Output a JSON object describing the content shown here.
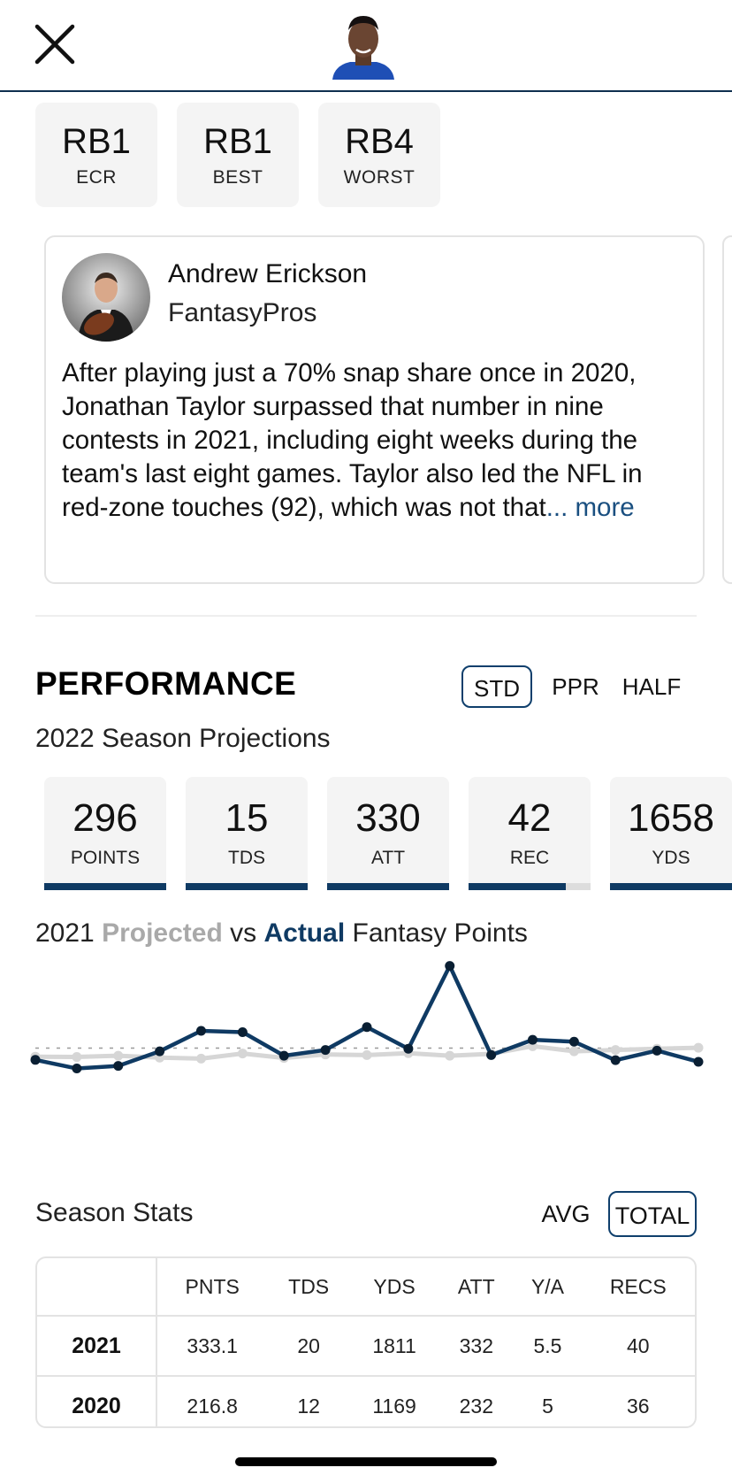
{
  "header": {
    "close_icon": "close-icon",
    "player_avatar": "player-headshot"
  },
  "rankings": [
    {
      "value": "RB1",
      "label": "ECR"
    },
    {
      "value": "RB1",
      "label": "BEST"
    },
    {
      "value": "RB4",
      "label": "WORST"
    }
  ],
  "expert": {
    "name": "Andrew Erickson",
    "org": "FantasyPros",
    "blurb": "After playing just a 70% snap share once in 2020, Jonathan Taylor surpassed that number in nine contests in 2021, including eight weeks during the team's last eight games. Taylor also led the NFL in red-zone touches (92), which was not that",
    "ellipsis": "...",
    "more": " more"
  },
  "performance": {
    "title": "PERFORMANCE",
    "scoring": [
      "STD",
      "PPR",
      "HALF"
    ],
    "selected_scoring": "STD",
    "subtitle": "2022 Season Projections",
    "projections": [
      {
        "value": "296",
        "label": "POINTS",
        "fill": 1.0
      },
      {
        "value": "15",
        "label": "TDS",
        "fill": 1.0
      },
      {
        "value": "330",
        "label": "ATT",
        "fill": 1.0
      },
      {
        "value": "42",
        "label": "REC",
        "fill": 0.8
      },
      {
        "value": "1658",
        "label": "YDS",
        "fill": 1.0
      }
    ],
    "chart_title": {
      "year": "2021 ",
      "projected": "Projected",
      "vs": " vs ",
      "actual": "Actual",
      "rest": " Fantasy Points"
    }
  },
  "chart_data": {
    "type": "line",
    "title": "2021 Projected vs Actual Fantasy Points",
    "x": [
      1,
      2,
      3,
      4,
      5,
      6,
      7,
      8,
      9,
      10,
      11,
      12,
      13,
      14,
      15,
      16,
      17
    ],
    "series": [
      {
        "name": "Projected",
        "color": "#d6d6d6",
        "values": [
          15.5,
          15.4,
          15.8,
          15.2,
          14.9,
          16.5,
          15.1,
          16.2,
          16.0,
          16.6,
          15.8,
          16.4,
          18.8,
          17.2,
          17.6,
          18.0,
          18.3
        ]
      },
      {
        "name": "Actual",
        "color": "#0f3a63",
        "values": [
          14.5,
          11.8,
          12.6,
          17.2,
          23.6,
          23.2,
          15.8,
          17.6,
          24.8,
          18.0,
          44.0,
          16.0,
          20.8,
          20.2,
          14.4,
          17.4,
          13.9
        ]
      }
    ],
    "average_line": 18.2,
    "ylim": [
      0,
      50
    ],
    "grid": false,
    "legend": "none"
  },
  "season_stats": {
    "title": "Season Stats",
    "views": [
      "AVG",
      "TOTAL"
    ],
    "selected_view": "TOTAL",
    "columns": [
      "",
      "PNTS",
      "TDS",
      "YDS",
      "ATT",
      "Y/A",
      "RECS"
    ],
    "rows": [
      [
        "2021",
        "333.1",
        "20",
        "1811",
        "332",
        "5.5",
        "40"
      ],
      [
        "2020",
        "216.8",
        "12",
        "1169",
        "232",
        "5",
        "36"
      ]
    ]
  }
}
